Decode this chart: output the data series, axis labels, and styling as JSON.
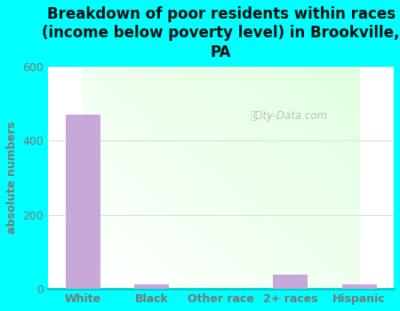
{
  "title": "Breakdown of poor residents within races\n(income below poverty level) in Brookville,\nPA",
  "categories": [
    "White",
    "Black",
    "Other race",
    "2+ races",
    "Hispanic"
  ],
  "values": [
    470,
    13,
    0,
    40,
    13
  ],
  "bar_color": "#c8a8d8",
  "ylabel": "absolute numbers",
  "ylim": [
    0,
    600
  ],
  "yticks": [
    0,
    200,
    400,
    600
  ],
  "background_color": "#00ffff",
  "watermark": "City-Data.com",
  "title_fontsize": 12,
  "ylabel_fontsize": 9,
  "tick_fontsize": 9,
  "title_color": "#111111",
  "axis_label_color": "#777777",
  "grid_color": "#d0e8d0"
}
